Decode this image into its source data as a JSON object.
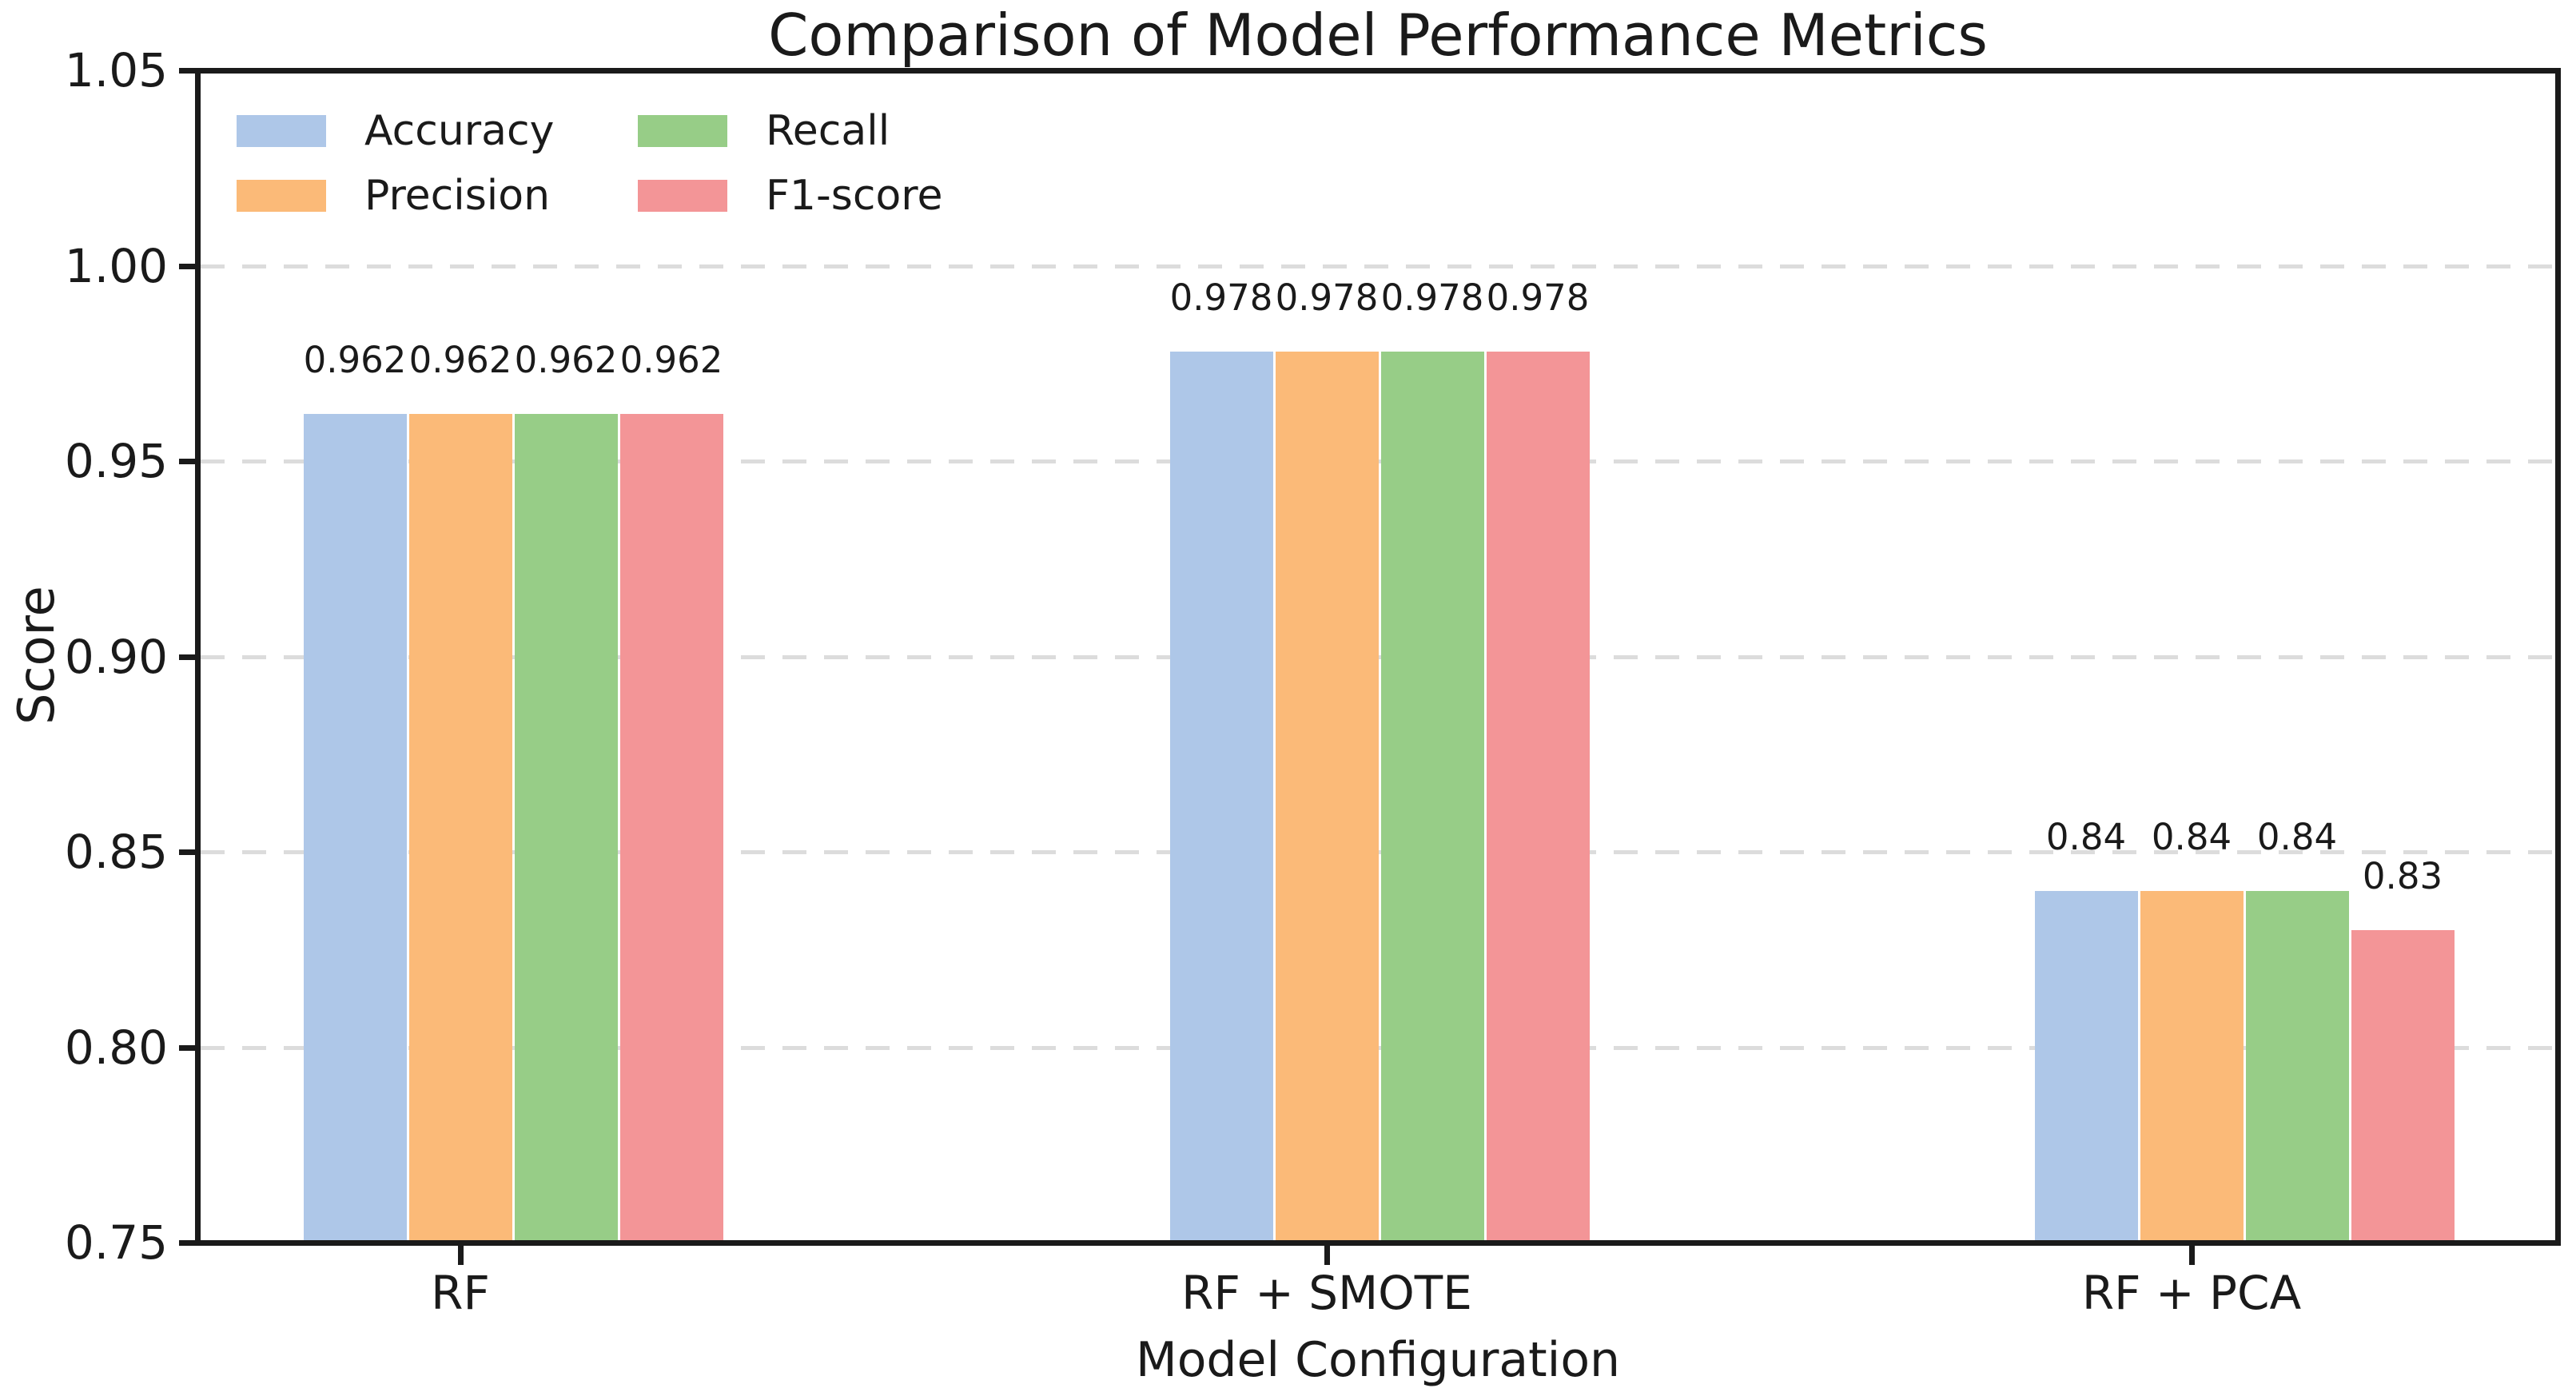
{
  "title": "Comparison of Model Performance Metrics",
  "y_axis": {
    "label": "Score",
    "tick_labels": [
      "1.05",
      "1.00",
      "0.95",
      "0.90",
      "0.85",
      "0.80",
      "0.75"
    ],
    "tick_values": [
      1.05,
      1.0,
      0.95,
      0.9,
      0.85,
      0.8,
      0.75
    ]
  },
  "x_axis": {
    "label": "Model Configuration",
    "tick_labels": [
      "RF",
      "RF + SMOTE",
      "RF + PCA"
    ]
  },
  "legend": {
    "items": [
      {
        "label": "Accuracy",
        "color": "#aec7e8"
      },
      {
        "label": "Precision",
        "color": "#fbba78"
      },
      {
        "label": "Recall",
        "color": "#97cd87"
      },
      {
        "label": "F1-score",
        "color": "#f39597"
      }
    ]
  },
  "colors": {
    "text": "#1a1a1a",
    "spine": "#1a1a1a",
    "grid": "#dcdcdc",
    "background": "#ffffff"
  },
  "chart_data": {
    "type": "bar",
    "title": "Comparison of Model Performance Metrics",
    "categories": [
      "RF",
      "RF + SMOTE",
      "RF + PCA"
    ],
    "series": [
      {
        "name": "Accuracy",
        "color": "#aec7e8",
        "values": [
          0.962,
          0.978,
          0.84
        ],
        "labels": [
          "0.962",
          "0.978",
          "0.84"
        ]
      },
      {
        "name": "Precision",
        "color": "#fbba78",
        "values": [
          0.962,
          0.978,
          0.84
        ],
        "labels": [
          "0.962",
          "0.978",
          "0.84"
        ]
      },
      {
        "name": "Recall",
        "color": "#97cd87",
        "values": [
          0.962,
          0.978,
          0.84
        ],
        "labels": [
          "0.962",
          "0.978",
          "0.84"
        ]
      },
      {
        "name": "F1-score",
        "color": "#f39597",
        "values": [
          0.962,
          0.978,
          0.83
        ],
        "labels": [
          "0.962",
          "0.978",
          "0.83"
        ]
      }
    ],
    "xlabel": "Model Configuration",
    "ylabel": "Score",
    "ylim": [
      0.75,
      1.05
    ],
    "yticks": [
      0.75,
      0.8,
      0.85,
      0.9,
      0.95,
      1.0,
      1.05
    ],
    "grid": true,
    "grid_axis": "y",
    "grid_style": "dashed",
    "legend_position": "upper left",
    "legend_ncols": 2,
    "bar_value_labels": true
  }
}
